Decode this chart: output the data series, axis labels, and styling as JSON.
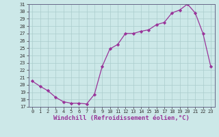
{
  "x": [
    0,
    1,
    2,
    3,
    4,
    5,
    6,
    7,
    8,
    9,
    10,
    11,
    12,
    13,
    14,
    15,
    16,
    17,
    18,
    19,
    20,
    21,
    22,
    23
  ],
  "y": [
    20.5,
    19.8,
    19.2,
    18.3,
    17.7,
    17.5,
    17.5,
    17.4,
    18.7,
    22.5,
    24.9,
    25.5,
    27.0,
    27.0,
    27.3,
    27.5,
    28.2,
    28.5,
    29.8,
    30.2,
    31.0,
    29.8,
    27.0,
    22.5
  ],
  "line_color": "#993399",
  "marker": "D",
  "marker_size": 2.2,
  "bg_color": "#cce8e8",
  "grid_color": "#aacccc",
  "xlabel": "Windchill (Refroidissement éolien,°C)",
  "ylim": [
    17,
    31
  ],
  "xlim_min": -0.5,
  "xlim_max": 23.5,
  "yticks": [
    17,
    18,
    19,
    20,
    21,
    22,
    23,
    24,
    25,
    26,
    27,
    28,
    29,
    30,
    31
  ],
  "xticks": [
    0,
    1,
    2,
    3,
    4,
    5,
    6,
    7,
    8,
    9,
    10,
    11,
    12,
    13,
    14,
    15,
    16,
    17,
    18,
    19,
    20,
    21,
    22,
    23
  ],
  "tick_fontsize": 5.0,
  "xlabel_fontsize": 6.5,
  "spine_color": "#666688",
  "axis_label_color": "#993399"
}
